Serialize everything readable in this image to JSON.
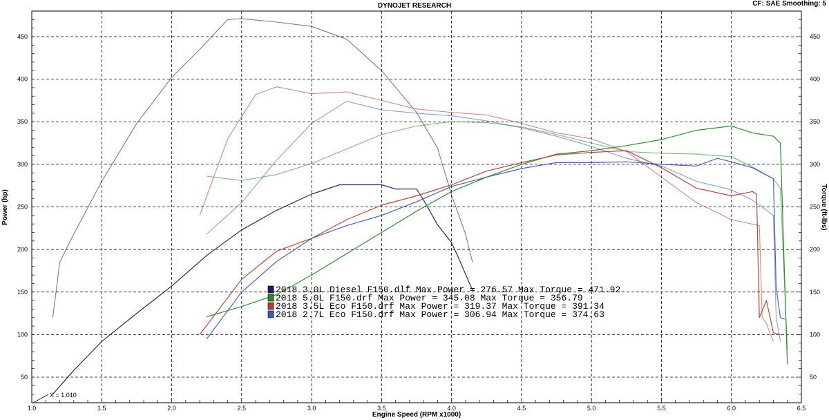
{
  "header": {
    "title": "DYNOJET RESEARCH",
    "settings": "CF: SAE  Smoothing: 5"
  },
  "chart_data": {
    "type": "line",
    "xlabel": "Engine Speed (RPM x1000)",
    "ylabel_left": "Power (hp)",
    "ylabel_right": "Torque (ft-lbs)",
    "xlim": [
      1.0,
      6.5
    ],
    "ylim": [
      20,
      480
    ],
    "x_ticks": [
      "1.0",
      "1.5",
      "2.0",
      "2.5",
      "3.0",
      "3.5",
      "4.0",
      "4.5",
      "5.0",
      "5.5",
      "6.0",
      "6.5"
    ],
    "x_tick_values": [
      1.0,
      1.5,
      2.0,
      2.5,
      3.0,
      3.5,
      4.0,
      4.5,
      5.0,
      5.5,
      6.0,
      6.5
    ],
    "y_ticks": [
      "50",
      "100",
      "150",
      "200",
      "250",
      "300",
      "350",
      "400",
      "450"
    ],
    "y_tick_values": [
      50,
      100,
      150,
      200,
      250,
      300,
      350,
      400,
      450
    ],
    "grid": true,
    "cursor_label": "X = 1.010",
    "cursor_x": 1.01,
    "series": [
      {
        "name": "2018 3.0L Diesel F150.dlf",
        "color": "#1a1a6e",
        "legend": "2018 3.0L Diesel F150.dlf Max Power = 276.57     Max Torque = 471.92",
        "power": [
          [
            1.15,
            30
          ],
          [
            1.3,
            58
          ],
          [
            1.5,
            92
          ],
          [
            1.75,
            125
          ],
          [
            2.0,
            157
          ],
          [
            2.25,
            193
          ],
          [
            2.5,
            223
          ],
          [
            2.75,
            246
          ],
          [
            3.0,
            265
          ],
          [
            3.2,
            276
          ],
          [
            3.5,
            276
          ],
          [
            3.6,
            271
          ],
          [
            3.75,
            271
          ],
          [
            3.8,
            258
          ],
          [
            3.9,
            229
          ],
          [
            4.0,
            208
          ],
          [
            4.05,
            190
          ],
          [
            4.15,
            152
          ]
        ],
        "torque": [
          [
            1.15,
            120
          ],
          [
            1.2,
            185
          ],
          [
            1.3,
            218
          ],
          [
            1.5,
            280
          ],
          [
            1.75,
            348
          ],
          [
            2.0,
            402
          ],
          [
            2.2,
            435
          ],
          [
            2.4,
            470
          ],
          [
            2.5,
            471
          ],
          [
            2.75,
            467
          ],
          [
            3.0,
            462
          ],
          [
            3.25,
            447
          ],
          [
            3.5,
            410
          ],
          [
            3.75,
            361
          ],
          [
            3.9,
            319
          ],
          [
            4.0,
            264
          ],
          [
            4.1,
            218
          ],
          [
            4.15,
            185
          ]
        ]
      },
      {
        "name": "2018 5.0L F150.drf",
        "color": "#228b22",
        "legend": "2018 5.0L F150.drf Max Power = 345.08     Max Torque = 356.79",
        "power": [
          [
            2.25,
            121
          ],
          [
            2.5,
            133
          ],
          [
            2.75,
            147
          ],
          [
            3.0,
            170
          ],
          [
            3.25,
            195
          ],
          [
            3.5,
            220
          ],
          [
            3.75,
            245
          ],
          [
            4.0,
            268
          ],
          [
            4.25,
            285
          ],
          [
            4.5,
            300
          ],
          [
            4.75,
            312
          ],
          [
            5.0,
            316
          ],
          [
            5.25,
            322
          ],
          [
            5.5,
            329
          ],
          [
            5.75,
            340
          ],
          [
            6.0,
            345
          ],
          [
            6.15,
            337
          ],
          [
            6.3,
            333
          ],
          [
            6.35,
            325
          ],
          [
            6.4,
            65
          ]
        ],
        "torque": [
          [
            2.25,
            286
          ],
          [
            2.5,
            281
          ],
          [
            2.75,
            288
          ],
          [
            3.0,
            301
          ],
          [
            3.25,
            318
          ],
          [
            3.5,
            335
          ],
          [
            3.75,
            345
          ],
          [
            4.0,
            350
          ],
          [
            4.25,
            349
          ],
          [
            4.5,
            344
          ],
          [
            4.75,
            335
          ],
          [
            5.0,
            325
          ],
          [
            5.25,
            315
          ],
          [
            5.5,
            313
          ],
          [
            5.75,
            312
          ],
          [
            6.0,
            309
          ],
          [
            6.15,
            297
          ],
          [
            6.3,
            283
          ],
          [
            6.35,
            272
          ],
          [
            6.4,
            82
          ]
        ]
      },
      {
        "name": "2018 3.5L Eco F150.drf",
        "color": "#c0392b",
        "legend": "2018 3.5L Eco F150.drf Max Power = 319.37     Max Torque = 391.34",
        "power": [
          [
            2.2,
            100
          ],
          [
            2.5,
            165
          ],
          [
            2.75,
            198
          ],
          [
            3.0,
            213
          ],
          [
            3.25,
            235
          ],
          [
            3.5,
            252
          ],
          [
            3.75,
            263
          ],
          [
            4.0,
            276
          ],
          [
            4.25,
            292
          ],
          [
            4.5,
            302
          ],
          [
            4.75,
            311
          ],
          [
            5.0,
            314
          ],
          [
            5.25,
            316
          ],
          [
            5.5,
            296
          ],
          [
            5.75,
            272
          ],
          [
            6.0,
            263
          ],
          [
            6.15,
            268
          ],
          [
            6.18,
            265
          ],
          [
            6.2,
            120
          ],
          [
            6.25,
            140
          ],
          [
            6.3,
            102
          ],
          [
            6.35,
            100
          ]
        ],
        "torque": [
          [
            2.2,
            240
          ],
          [
            2.4,
            330
          ],
          [
            2.6,
            382
          ],
          [
            2.75,
            391
          ],
          [
            3.0,
            383
          ],
          [
            3.25,
            385
          ],
          [
            3.5,
            375
          ],
          [
            3.75,
            365
          ],
          [
            4.0,
            361
          ],
          [
            4.25,
            358
          ],
          [
            4.5,
            348
          ],
          [
            4.75,
            337
          ],
          [
            5.0,
            330
          ],
          [
            5.25,
            315
          ],
          [
            5.5,
            285
          ],
          [
            5.75,
            255
          ],
          [
            6.0,
            235
          ],
          [
            6.2,
            228
          ],
          [
            6.22,
            120
          ],
          [
            6.25,
            113
          ],
          [
            6.3,
            92
          ]
        ]
      },
      {
        "name": "2018 2.7L Eco F150.drf",
        "color": "#3a57c9",
        "legend": "2018 2.7L Eco F150.drf Max Power = 306.94     Max Torque = 374.63",
        "power": [
          [
            2.25,
            95
          ],
          [
            2.5,
            150
          ],
          [
            2.75,
            186
          ],
          [
            3.0,
            213
          ],
          [
            3.25,
            228
          ],
          [
            3.5,
            240
          ],
          [
            3.75,
            256
          ],
          [
            4.0,
            274
          ],
          [
            4.25,
            285
          ],
          [
            4.5,
            295
          ],
          [
            4.75,
            302
          ],
          [
            5.0,
            302
          ],
          [
            5.25,
            303
          ],
          [
            5.5,
            300
          ],
          [
            5.75,
            298
          ],
          [
            5.9,
            307
          ],
          [
            6.0,
            303
          ],
          [
            6.15,
            296
          ],
          [
            6.3,
            283
          ],
          [
            6.32,
            155
          ],
          [
            6.35,
            120
          ],
          [
            6.38,
            118
          ]
        ],
        "torque": [
          [
            2.25,
            218
          ],
          [
            2.5,
            255
          ],
          [
            2.75,
            305
          ],
          [
            3.0,
            348
          ],
          [
            3.25,
            374
          ],
          [
            3.5,
            364
          ],
          [
            3.75,
            360
          ],
          [
            4.0,
            357
          ],
          [
            4.25,
            351
          ],
          [
            4.5,
            343
          ],
          [
            4.75,
            333
          ],
          [
            5.0,
            321
          ],
          [
            5.25,
            307
          ],
          [
            5.5,
            298
          ],
          [
            5.75,
            280
          ],
          [
            6.0,
            270
          ],
          [
            6.15,
            258
          ],
          [
            6.3,
            240
          ],
          [
            6.32,
            120
          ],
          [
            6.35,
            92
          ]
        ]
      }
    ]
  }
}
